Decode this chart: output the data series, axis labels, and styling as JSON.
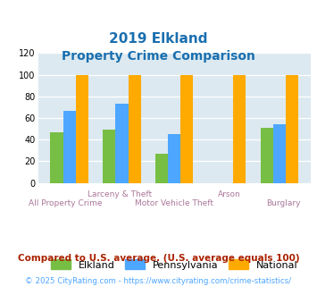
{
  "title_line1": "2019 Elkland",
  "title_line2": "Property Crime Comparison",
  "categories": [
    "All Property Crime",
    "Larceny & Theft",
    "Motor Vehicle Theft",
    "Arson",
    "Burglary"
  ],
  "x_top_labels": [
    "",
    "Larceny & Theft",
    "",
    "Arson",
    ""
  ],
  "x_bot_labels": [
    "All Property Crime",
    "",
    "Motor Vehicle Theft",
    "",
    "Burglary"
  ],
  "elkland": [
    47,
    49,
    27,
    0,
    51
  ],
  "pennsylvania": [
    67,
    73,
    45,
    0,
    54
  ],
  "national": [
    100,
    100,
    100,
    100,
    100
  ],
  "colors": {
    "elkland": "#76bf44",
    "pennsylvania": "#4da6ff",
    "national": "#ffaa00"
  },
  "ylim": [
    0,
    120
  ],
  "yticks": [
    0,
    20,
    40,
    60,
    80,
    100,
    120
  ],
  "title_color": "#1a6faf",
  "xlabel_top_color": "#aa7799",
  "xlabel_bot_color": "#aa7799",
  "background_color": "#dce9f0",
  "grid_color": "#ffffff",
  "legend_labels": [
    "Elkland",
    "Pennsylvania",
    "National"
  ],
  "footnote1": "Compared to U.S. average. (U.S. average equals 100)",
  "footnote2": "© 2025 CityRating.com - https://www.cityrating.com/crime-statistics/",
  "footnote1_color": "#aa2200",
  "footnote2_color": "#4da6ff"
}
